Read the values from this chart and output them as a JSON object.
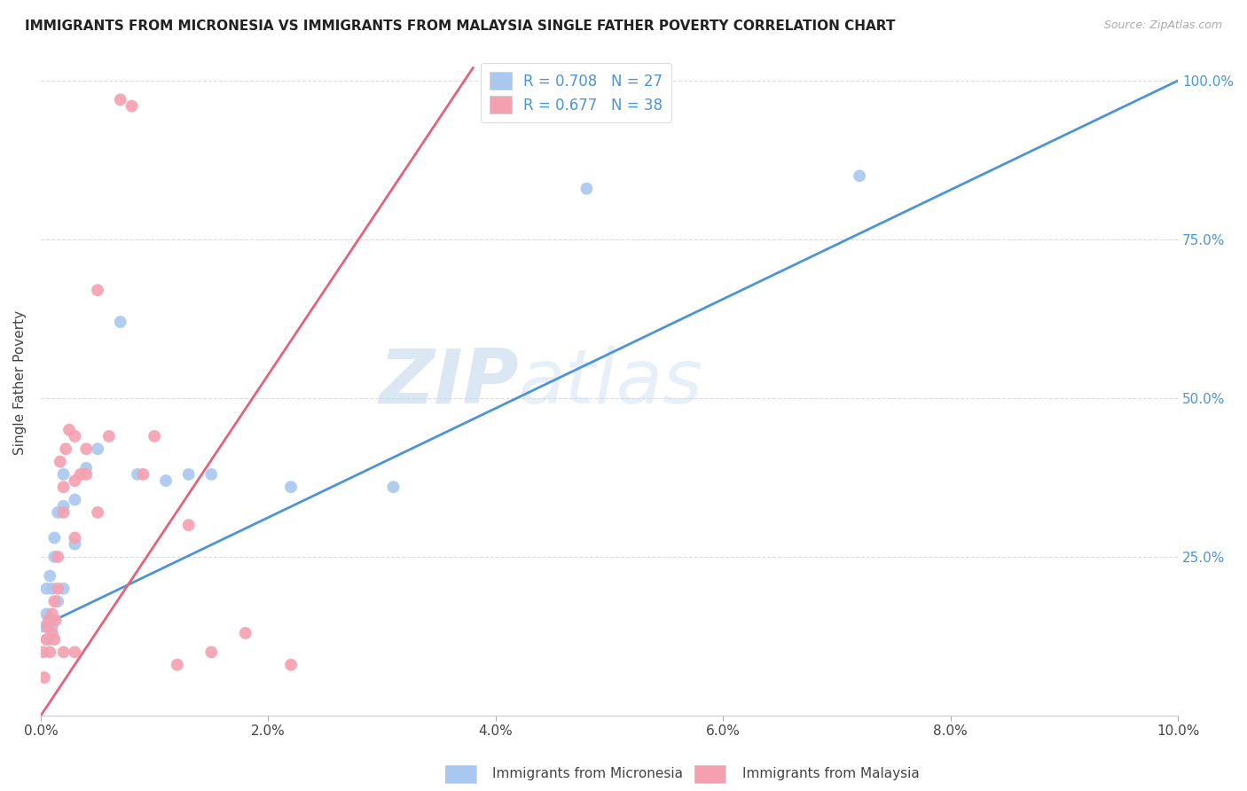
{
  "title": "IMMIGRANTS FROM MICRONESIA VS IMMIGRANTS FROM MALAYSIA SINGLE FATHER POVERTY CORRELATION CHART",
  "source": "Source: ZipAtlas.com",
  "ylabel": "Single Father Poverty",
  "x_min": 0.0,
  "x_max": 0.1,
  "y_min": 0.0,
  "y_max": 1.05,
  "micronesia_color": "#a8c8f0",
  "malaysia_color": "#f4a0b0",
  "micronesia_line_color": "#4d94d6",
  "malaysia_line_color": "#e8607a",
  "micronesia_R": 0.708,
  "micronesia_N": 27,
  "malaysia_R": 0.677,
  "malaysia_N": 38,
  "watermark_zip": "ZIP",
  "watermark_atlas": "atlas",
  "mic_line_x0": 0.0,
  "mic_line_y0": 0.14,
  "mic_line_x1": 0.1,
  "mic_line_y1": 1.0,
  "mal_line_x0": 0.0,
  "mal_line_y0": 0.0,
  "mal_line_x1": 0.038,
  "mal_line_y1": 1.02,
  "micronesia_x": [
    0.0003,
    0.0005,
    0.0005,
    0.0007,
    0.0008,
    0.001,
    0.001,
    0.0012,
    0.0012,
    0.0015,
    0.0015,
    0.002,
    0.002,
    0.002,
    0.003,
    0.003,
    0.004,
    0.005,
    0.007,
    0.0085,
    0.011,
    0.013,
    0.015,
    0.022,
    0.031,
    0.048,
    0.072
  ],
  "micronesia_y": [
    0.14,
    0.16,
    0.2,
    0.12,
    0.22,
    0.14,
    0.2,
    0.25,
    0.28,
    0.18,
    0.32,
    0.2,
    0.33,
    0.38,
    0.27,
    0.34,
    0.39,
    0.42,
    0.62,
    0.38,
    0.37,
    0.38,
    0.38,
    0.36,
    0.36,
    0.83,
    0.85
  ],
  "malaysia_x": [
    0.0002,
    0.0003,
    0.0005,
    0.0006,
    0.0007,
    0.0008,
    0.001,
    0.001,
    0.0012,
    0.0012,
    0.0013,
    0.0015,
    0.0015,
    0.0017,
    0.002,
    0.002,
    0.002,
    0.0022,
    0.0025,
    0.003,
    0.003,
    0.003,
    0.003,
    0.0035,
    0.004,
    0.004,
    0.005,
    0.005,
    0.006,
    0.007,
    0.008,
    0.009,
    0.01,
    0.012,
    0.013,
    0.015,
    0.018,
    0.022
  ],
  "malaysia_y": [
    0.1,
    0.06,
    0.12,
    0.14,
    0.15,
    0.1,
    0.13,
    0.16,
    0.12,
    0.18,
    0.15,
    0.2,
    0.25,
    0.4,
    0.1,
    0.32,
    0.36,
    0.42,
    0.45,
    0.1,
    0.28,
    0.37,
    0.44,
    0.38,
    0.38,
    0.42,
    0.67,
    0.32,
    0.44,
    0.97,
    0.96,
    0.38,
    0.44,
    0.08,
    0.3,
    0.1,
    0.13,
    0.08
  ]
}
